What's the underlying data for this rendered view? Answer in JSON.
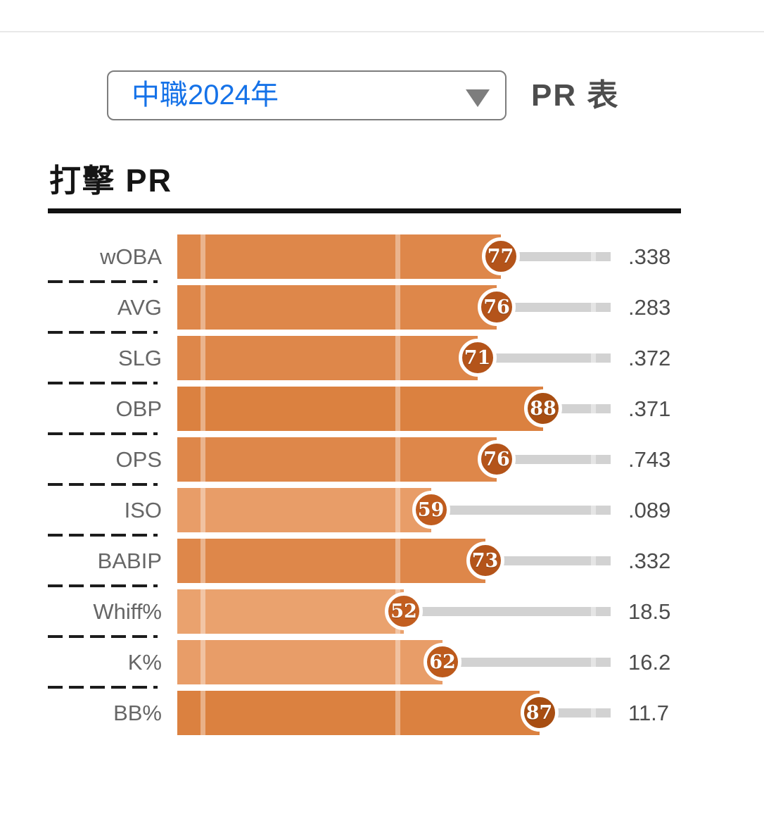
{
  "header": {
    "divider_color": "#e8e8e8"
  },
  "controls": {
    "season_select": {
      "value": "中職2024年",
      "caret_icon": "triangle-down",
      "border_color": "#7d7d7d",
      "text_color": "#1572e8"
    },
    "table_label": "PR 表"
  },
  "section": {
    "title": "打擊 PR",
    "rule_color": "#111111"
  },
  "chart_data": {
    "type": "bar",
    "orientation": "horizontal",
    "title": "打擊 PR",
    "x_axis": {
      "min": 0,
      "max": 100,
      "gridlines": [
        0,
        50,
        100
      ],
      "grid_visible": true
    },
    "legend": "none",
    "track_color": "#d2d2d2",
    "label_color": "#666666",
    "value_color": "#4d4d4d",
    "rows": [
      {
        "label": "wOBA",
        "pr": 77,
        "value": ".338",
        "bar_color": "#de874a",
        "badge_color": "#b4541a"
      },
      {
        "label": "AVG",
        "pr": 76,
        "value": ".283",
        "bar_color": "#de874a",
        "badge_color": "#b4541a"
      },
      {
        "label": "SLG",
        "pr": 71,
        "value": ".372",
        "bar_color": "#de874a",
        "badge_color": "#b4541a"
      },
      {
        "label": "OBP",
        "pr": 88,
        "value": ".371",
        "bar_color": "#db8140",
        "badge_color": "#a84e12"
      },
      {
        "label": "OPS",
        "pr": 76,
        "value": ".743",
        "bar_color": "#de874a",
        "badge_color": "#b4541a"
      },
      {
        "label": "ISO",
        "pr": 59,
        "value": ".089",
        "bar_color": "#e89d68",
        "badge_color": "#c05c1e"
      },
      {
        "label": "BABIP",
        "pr": 73,
        "value": ".332",
        "bar_color": "#de874a",
        "badge_color": "#b4541a"
      },
      {
        "label": "Whiff%",
        "pr": 52,
        "value": "18.5",
        "bar_color": "#eaa26e",
        "badge_color": "#c25e20"
      },
      {
        "label": "K%",
        "pr": 62,
        "value": "16.2",
        "bar_color": "#e89d68",
        "badge_color": "#bd5a1c"
      },
      {
        "label": "BB%",
        "pr": 87,
        "value": "11.7",
        "bar_color": "#db8140",
        "badge_color": "#a84e12"
      }
    ]
  }
}
